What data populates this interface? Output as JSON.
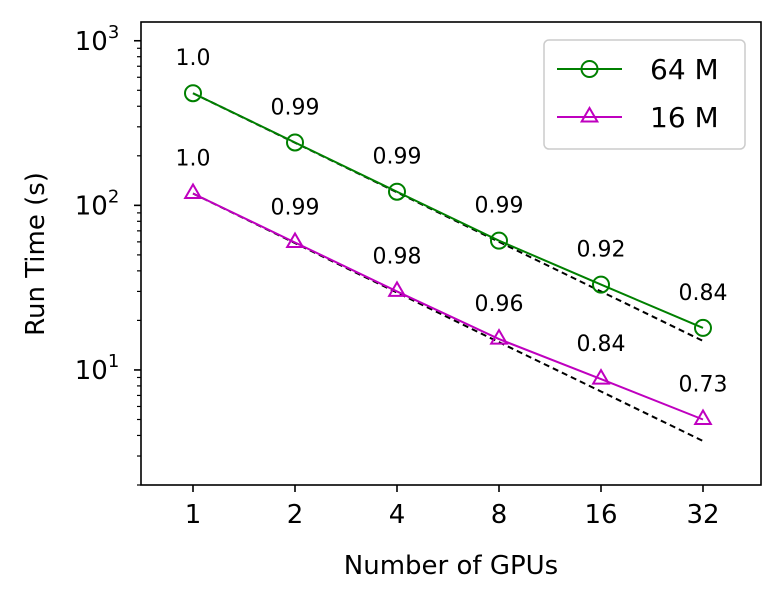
{
  "chart_data": {
    "type": "line",
    "x_scale": "log2",
    "y_scale": "log10",
    "categories": [
      "1",
      "2",
      "4",
      "8",
      "16",
      "32"
    ],
    "x": [
      1,
      2,
      4,
      8,
      16,
      32
    ],
    "ylim": [
      2,
      1300
    ],
    "xlabel": "Number of GPUs",
    "ylabel": "Run Time (s)",
    "y_ticks": [
      10,
      100,
      1000
    ],
    "grid": false,
    "legend": {
      "position": "top-right"
    },
    "series": [
      {
        "name": "64 M",
        "color": "#008000",
        "marker": "circle",
        "values": [
          480,
          241,
          121,
          61,
          33,
          18
        ],
        "labels": [
          "1.0",
          "0.99",
          "0.99",
          "0.99",
          "0.92",
          "0.84"
        ],
        "ideal": [
          480,
          240,
          120,
          60,
          30,
          15
        ]
      },
      {
        "name": "16 M",
        "color": "#bf00bf",
        "marker": "triangle",
        "values": [
          118,
          59.5,
          30,
          15.4,
          8.8,
          5.0
        ],
        "labels": [
          "1.0",
          "0.99",
          "0.98",
          "0.96",
          "0.84",
          "0.73"
        ],
        "ideal": [
          118,
          59,
          29.5,
          14.75,
          7.4,
          3.7
        ]
      }
    ],
    "ideal_line_style": "dashed-black"
  }
}
